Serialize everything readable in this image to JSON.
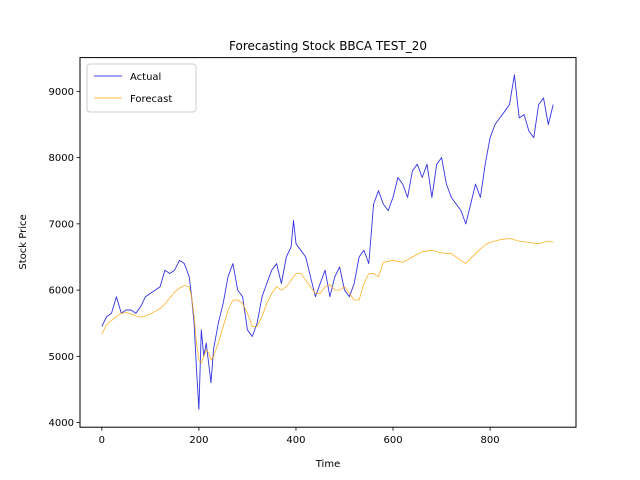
{
  "chart_data": {
    "type": "line",
    "title": "Forecasting Stock BBCA TEST_20",
    "xlabel": "Time",
    "ylabel": "Stock Price",
    "xlim": [
      -45,
      977
    ],
    "ylim": [
      3930,
      9510
    ],
    "xticks": [
      0,
      200,
      400,
      600,
      800
    ],
    "yticks": [
      4000,
      5000,
      6000,
      7000,
      8000,
      9000
    ],
    "grid": false,
    "legend_position": "upper left",
    "colors": {
      "actual": "#0000dd",
      "forecast": "#ffa500"
    },
    "series": [
      {
        "name": "Actual",
        "x": [
          0,
          10,
          20,
          30,
          40,
          50,
          60,
          70,
          80,
          90,
          100,
          110,
          120,
          130,
          140,
          150,
          160,
          170,
          180,
          185,
          190,
          195,
          200,
          205,
          210,
          215,
          220,
          225,
          230,
          240,
          250,
          260,
          270,
          280,
          290,
          300,
          310,
          320,
          330,
          340,
          350,
          360,
          370,
          380,
          390,
          395,
          400,
          410,
          420,
          430,
          440,
          450,
          460,
          470,
          480,
          490,
          500,
          510,
          520,
          530,
          540,
          550,
          560,
          570,
          580,
          590,
          600,
          610,
          620,
          630,
          640,
          650,
          660,
          670,
          680,
          690,
          700,
          710,
          720,
          730,
          740,
          750,
          760,
          770,
          780,
          790,
          800,
          810,
          820,
          830,
          840,
          850,
          860,
          870,
          880,
          890,
          900,
          910,
          920,
          930
        ],
        "values": [
          5450,
          5600,
          5650,
          5900,
          5650,
          5700,
          5700,
          5650,
          5750,
          5900,
          5950,
          6000,
          6050,
          6300,
          6250,
          6300,
          6450,
          6400,
          6200,
          5900,
          5500,
          4800,
          4200,
          5400,
          5000,
          5200,
          4900,
          4600,
          5100,
          5500,
          5800,
          6200,
          6400,
          6000,
          5900,
          5400,
          5300,
          5500,
          5900,
          6100,
          6300,
          6400,
          6100,
          6500,
          6650,
          7050,
          6700,
          6600,
          6500,
          6200,
          5900,
          6100,
          6300,
          5900,
          6200,
          6350,
          6000,
          5900,
          6100,
          6500,
          6600,
          6400,
          7300,
          7500,
          7300,
          7200,
          7400,
          7700,
          7600,
          7400,
          7800,
          7900,
          7700,
          7900,
          7400,
          7900,
          8000,
          7600,
          7400,
          7300,
          7200,
          7000,
          7300,
          7600,
          7400,
          7900,
          8300,
          8500,
          8600,
          8700,
          8800,
          9250,
          8600,
          8650,
          8400,
          8300,
          8800,
          8900,
          8500,
          8800
        ]
      },
      {
        "name": "Forecast",
        "x": [
          0,
          10,
          20,
          30,
          40,
          50,
          60,
          70,
          80,
          90,
          100,
          110,
          120,
          130,
          140,
          150,
          160,
          170,
          180,
          185,
          190,
          195,
          200,
          205,
          210,
          215,
          220,
          225,
          230,
          240,
          250,
          260,
          270,
          280,
          290,
          300,
          310,
          320,
          330,
          340,
          350,
          360,
          370,
          380,
          390,
          400,
          410,
          420,
          430,
          440,
          450,
          460,
          470,
          480,
          490,
          500,
          510,
          520,
          530,
          540,
          550,
          560,
          570,
          580,
          600,
          620,
          640,
          660,
          680,
          700,
          720,
          740,
          750,
          760,
          770,
          780,
          790,
          800,
          820,
          840,
          860,
          880,
          900,
          920,
          930
        ],
        "values": [
          5330,
          5480,
          5540,
          5600,
          5650,
          5660,
          5640,
          5610,
          5590,
          5610,
          5640,
          5680,
          5720,
          5790,
          5880,
          5970,
          6030,
          6070,
          6050,
          5900,
          5600,
          5200,
          4950,
          4900,
          5000,
          5100,
          5050,
          4950,
          5000,
          5200,
          5450,
          5700,
          5850,
          5850,
          5800,
          5650,
          5450,
          5450,
          5600,
          5800,
          5950,
          6050,
          6000,
          6050,
          6150,
          6250,
          6250,
          6150,
          6050,
          5950,
          5950,
          6050,
          6080,
          6000,
          6000,
          6050,
          5950,
          5850,
          5850,
          6100,
          6250,
          6250,
          6200,
          6420,
          6450,
          6420,
          6500,
          6580,
          6600,
          6560,
          6550,
          6450,
          6400,
          6480,
          6550,
          6620,
          6680,
          6720,
          6760,
          6780,
          6740,
          6720,
          6700,
          6740,
          6720
        ]
      }
    ]
  }
}
